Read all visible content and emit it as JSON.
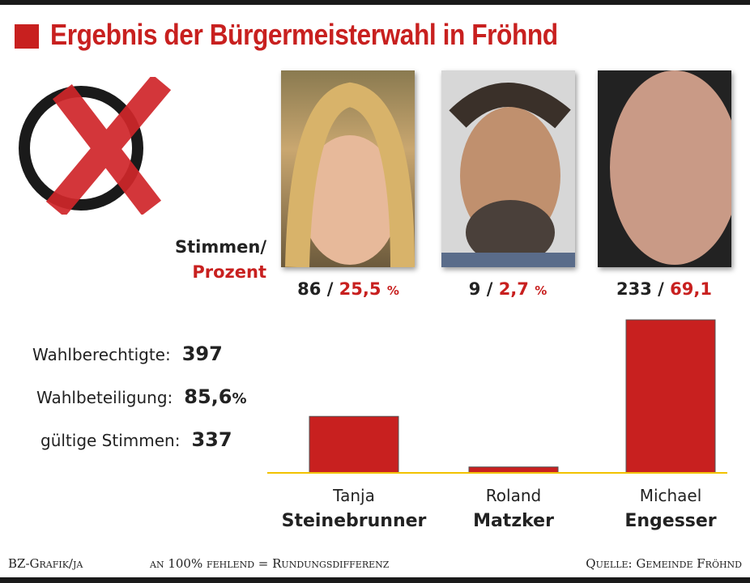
{
  "title": "Ergebnis der Bürgermeisterwahl in Fröhnd",
  "legend": {
    "votes_label": "Stimmen/",
    "percent_label": "Prozent"
  },
  "stats": [
    {
      "label": "Wahlberechtigte:",
      "value": "397"
    },
    {
      "label": "Wahlbeteiligung:",
      "value": "85,6",
      "unit": "%"
    },
    {
      "label": "gültige Stimmen:",
      "value": "337"
    }
  ],
  "colors": {
    "bar": "#c8201f",
    "baseline": "#f2c200",
    "accent": "#c8201f"
  },
  "icons": {
    "ballot": "ballot-cross-icon"
  },
  "chart_data": {
    "type": "bar",
    "categories": [
      "Tanja Steinebrunner",
      "Roland Matzker",
      "Michael Engesser"
    ],
    "values": [
      86,
      9,
      233
    ],
    "percent": [
      "25,5",
      "2,7",
      "69,1"
    ],
    "ylim": [
      0,
      233
    ]
  },
  "candidates": [
    {
      "first": "Tanja",
      "last": "Steinebrunner",
      "votes": "86",
      "sep": "/",
      "percent": "25,5",
      "unit": "%"
    },
    {
      "first": "Roland",
      "last": "Matzker",
      "votes": "9",
      "sep": "/",
      "percent": "2,7",
      "unit": "%"
    },
    {
      "first": "Michael",
      "last": "Engesser",
      "votes": "233",
      "sep": "/",
      "percent": "69,1",
      "unit": ""
    }
  ],
  "footer": {
    "credit": "BZ-Grafik/ja",
    "note": "an 100% fehlend = Rundungsdifferenz",
    "source": "Quelle: Gemeinde Fröhnd"
  }
}
